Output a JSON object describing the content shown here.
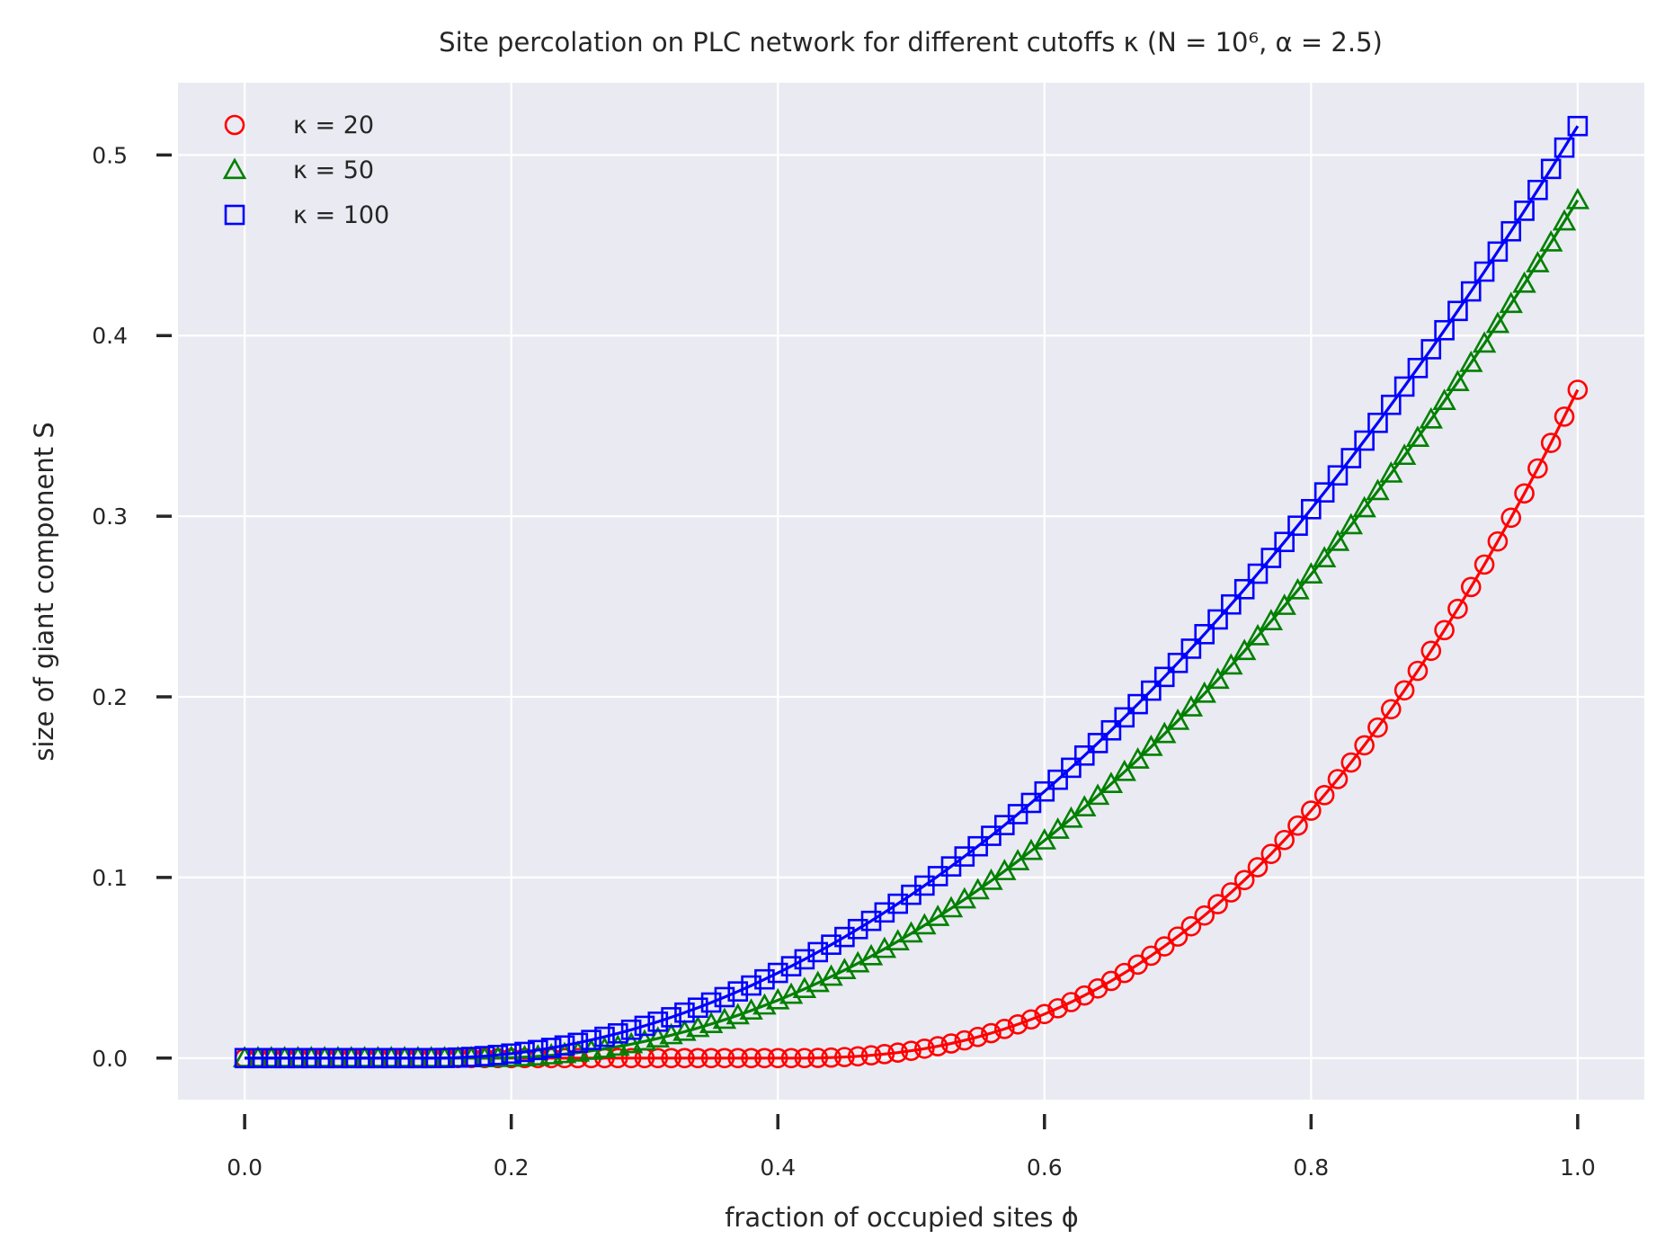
{
  "chart_data": {
    "type": "line",
    "title": "Site percolation on PLC network for different cutoffs κ (N = 10⁶, α = 2.5)",
    "xlabel": "fraction of occupied sites ϕ",
    "ylabel": "size of giant component S",
    "xlim": [
      -0.05,
      1.05
    ],
    "ylim": [
      -0.023,
      0.54
    ],
    "xticks": [
      0.0,
      0.2,
      0.4,
      0.6,
      0.8,
      1.0
    ],
    "xtick_labels": [
      "0.0",
      "0.2",
      "0.4",
      "0.6",
      "0.8",
      "1.0"
    ],
    "yticks": [
      0.0,
      0.1,
      0.2,
      0.3,
      0.4,
      0.5
    ],
    "ytick_labels": [
      "0.0",
      "0.1",
      "0.2",
      "0.3",
      "0.4",
      "0.5"
    ],
    "grid": true,
    "legend": "top-left",
    "x_sampling": {
      "start": 0.0,
      "stop": 1.0,
      "step": 0.01
    },
    "series": [
      {
        "name": "κ = 20",
        "marker": "circle",
        "color": "#ff0000",
        "threshold": 0.41,
        "end_value": 0.37,
        "curve_exponent": 2.4
      },
      {
        "name": "κ = 50",
        "marker": "triangle",
        "color": "#008000",
        "threshold": 0.18,
        "end_value": 0.475,
        "curve_exponent": 2.05
      },
      {
        "name": "κ = 100",
        "marker": "square",
        "color": "#0000ff",
        "threshold": 0.14,
        "end_value": 0.516,
        "curve_exponent": 2.0
      }
    ]
  }
}
